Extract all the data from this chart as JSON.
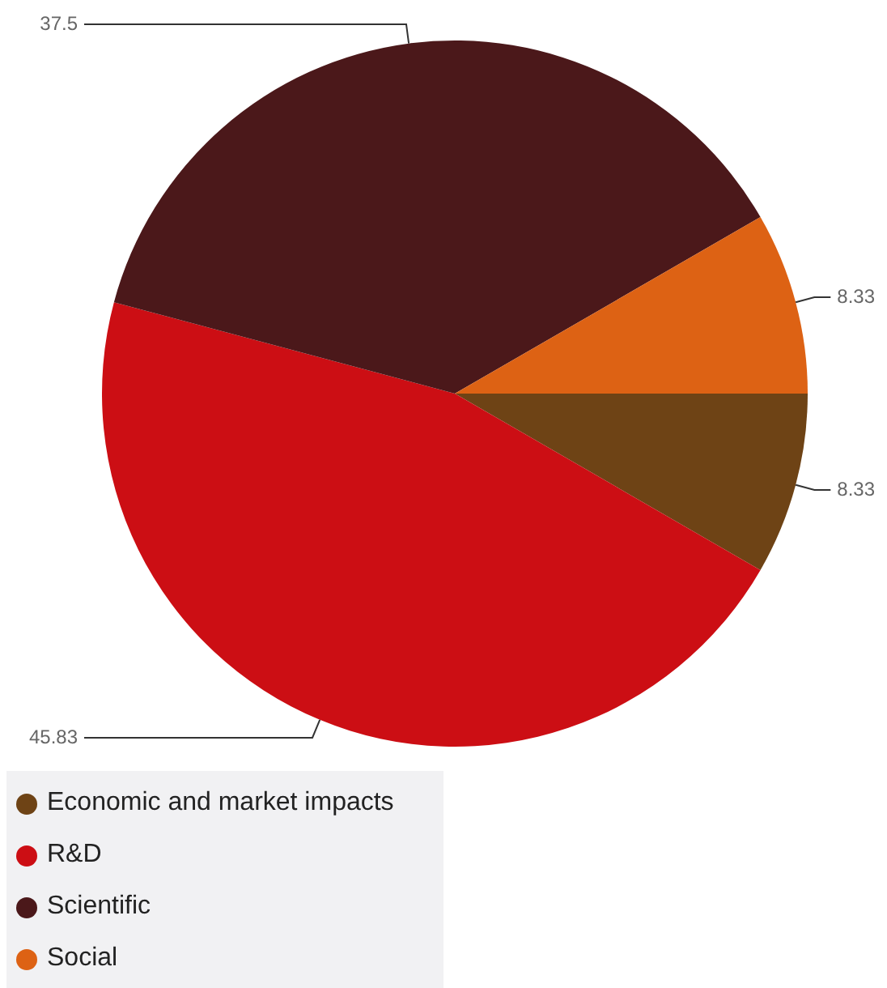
{
  "chart_data": {
    "type": "pie",
    "categories": [
      "Economic and market impacts",
      "R&D",
      "Scientific",
      "Social"
    ],
    "values": [
      8.33,
      45.83,
      37.5,
      8.33
    ],
    "colors": [
      "#6e4315",
      "#cc0e14",
      "#4b181a",
      "#dd6214"
    ],
    "data_labels": true,
    "legend": "bottom left"
  }
}
